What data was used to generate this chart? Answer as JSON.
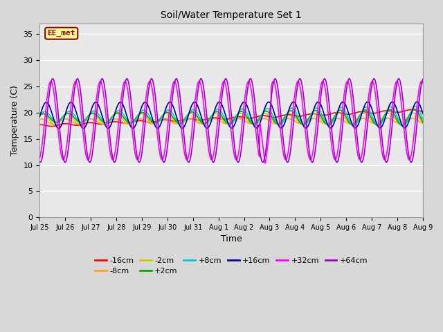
{
  "title": "Soil/Water Temperature Set 1",
  "xlabel": "Time",
  "ylabel": "Temperature (C)",
  "ylim": [
    0,
    37
  ],
  "yticks": [
    0,
    5,
    10,
    15,
    20,
    25,
    30,
    35
  ],
  "annotation_text": "EE_met",
  "annotation_color": "#8B0000",
  "annotation_bg": "#FFFF99",
  "background_color": "#D8D8D8",
  "plot_bg": "#E8E8E8",
  "series_order": [
    "-16cm",
    "-8cm",
    "-2cm",
    "+2cm",
    "+8cm",
    "+16cm",
    "+32cm",
    "+64cm"
  ],
  "series": {
    "-16cm": {
      "color": "#FF0000",
      "lw": 1.2
    },
    "-8cm": {
      "color": "#FFA500",
      "lw": 1.2
    },
    "-2cm": {
      "color": "#CCCC00",
      "lw": 1.2
    },
    "+2cm": {
      "color": "#00AA00",
      "lw": 1.2
    },
    "+8cm": {
      "color": "#00CCCC",
      "lw": 1.2
    },
    "+16cm": {
      "color": "#000099",
      "lw": 1.2
    },
    "+32cm": {
      "color": "#FF00FF",
      "lw": 1.2
    },
    "+64cm": {
      "color": "#9900CC",
      "lw": 1.2
    }
  },
  "xtick_labels": [
    "Jul 25",
    "Jul 26",
    "Jul 27",
    "Jul 28",
    "Jul 29",
    "Jul 30",
    "Jul 31",
    "Aug 1",
    "Aug 2",
    "Aug 3",
    "Aug 4",
    "Aug 5",
    "Aug 6",
    "Aug 7",
    "Aug 8",
    "Aug 9"
  ],
  "grid_color": "#FFFFFF",
  "grid_lw": 1.0,
  "n_days": 15.5,
  "points_per_day": 48
}
